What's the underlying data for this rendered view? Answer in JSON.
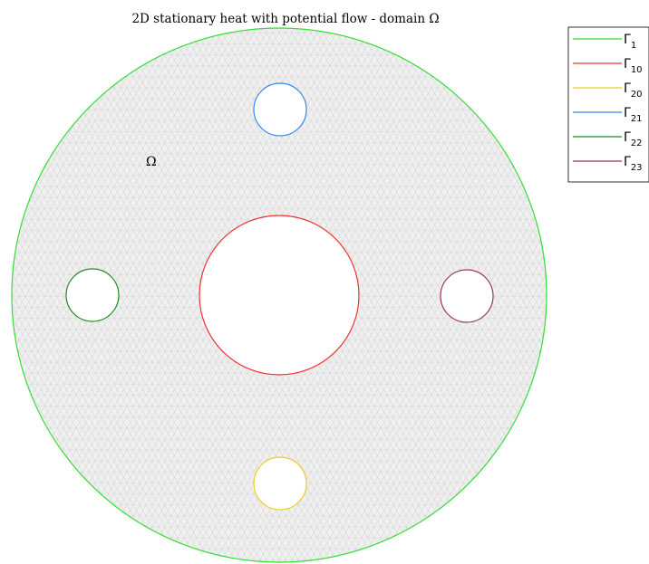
{
  "title": "2D stationary heat with potential flow - domain Ω",
  "domain_label": "Ω",
  "colors": {
    "mesh": "#d7d7d7",
    "mesh_fill": "#f0f0f0",
    "hole_fill": "#ffffff"
  },
  "legend": {
    "entries": [
      {
        "symbol": "Γ",
        "sub": "1",
        "color": "#33dd33"
      },
      {
        "symbol": "Γ",
        "sub": "10",
        "color": "#ee3333"
      },
      {
        "symbol": "Γ",
        "sub": "20",
        "color": "#eecc22"
      },
      {
        "symbol": "Γ",
        "sub": "21",
        "color": "#3388ee"
      },
      {
        "symbol": "Γ",
        "sub": "22",
        "color": "#228822"
      },
      {
        "symbol": "Γ",
        "sub": "23",
        "color": "#993366"
      }
    ]
  },
  "boundaries": [
    {
      "id": "1",
      "role": "outer",
      "color": "#33dd33"
    },
    {
      "id": "10",
      "role": "center",
      "color": "#ee3333"
    },
    {
      "id": "20",
      "role": "bottom",
      "color": "#eecc22"
    },
    {
      "id": "21",
      "role": "top",
      "color": "#3388ee"
    },
    {
      "id": "22",
      "role": "left",
      "color": "#228822"
    },
    {
      "id": "23",
      "role": "right",
      "color": "#993366"
    }
  ]
}
